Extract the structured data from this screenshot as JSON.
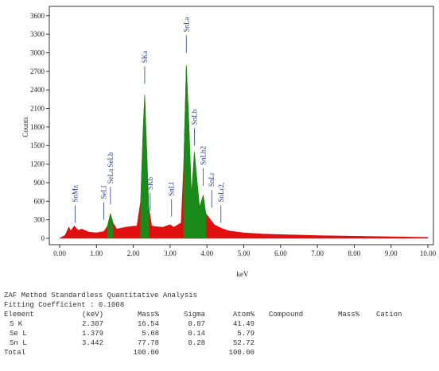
{
  "chart_data": {
    "type": "area",
    "x_label": "keV",
    "y_label": "Counts",
    "x": [
      0,
      0.15,
      0.25,
      0.3,
      0.4,
      0.5,
      0.6,
      0.8,
      1.0,
      1.2,
      1.3,
      1.38,
      1.45,
      1.55,
      1.7,
      1.9,
      2.1,
      2.2,
      2.27,
      2.31,
      2.36,
      2.42,
      2.5,
      2.6,
      2.8,
      3.0,
      3.1,
      3.3,
      3.37,
      3.44,
      3.5,
      3.58,
      3.66,
      3.72,
      3.8,
      3.9,
      3.97,
      4.1,
      4.2,
      4.4,
      4.6,
      5.0,
      5.5,
      6.0,
      7.0,
      8.0,
      9.0,
      10.0
    ],
    "series": [
      {
        "color": "#e01010",
        "values": [
          0,
          50,
          180,
          120,
          200,
          130,
          150,
          100,
          90,
          110,
          200,
          400,
          250,
          150,
          170,
          190,
          200,
          600,
          1800,
          2320,
          1500,
          500,
          200,
          190,
          180,
          220,
          180,
          250,
          1200,
          2800,
          2000,
          700,
          1400,
          1000,
          500,
          700,
          400,
          300,
          220,
          160,
          120,
          90,
          70,
          60,
          45,
          35,
          25,
          15
        ]
      },
      {
        "color": "#1a8a1a",
        "values": [
          null,
          null,
          null,
          null,
          null,
          null,
          null,
          null,
          null,
          null,
          200,
          400,
          250,
          null,
          null,
          null,
          null,
          600,
          1800,
          2320,
          1500,
          500,
          null,
          null,
          null,
          null,
          null,
          null,
          1200,
          2800,
          2000,
          700,
          1400,
          1000,
          500,
          700,
          400,
          null,
          null,
          null,
          null,
          null,
          null,
          null,
          null,
          null,
          null,
          null
        ]
      }
    ],
    "annotations": [
      {
        "label": "SnMz",
        "x": 0.42,
        "y": 250
      },
      {
        "label": "SeLl",
        "x": 1.2,
        "y": 300
      },
      {
        "label": "SeLa SeLb",
        "x": 1.38,
        "y": 550
      },
      {
        "label": "SKa",
        "x": 2.31,
        "y": 2500
      },
      {
        "label": "SKb",
        "x": 2.46,
        "y": 450
      },
      {
        "label": "SnLl",
        "x": 3.04,
        "y": 350
      },
      {
        "label": "SnLa",
        "x": 3.44,
        "y": 3000
      },
      {
        "label": "SnLb",
        "x": 3.66,
        "y": 1500
      },
      {
        "label": "SnLb2",
        "x": 3.9,
        "y": 850
      },
      {
        "label": "SnLr",
        "x": 4.13,
        "y": 500
      },
      {
        "label": "SnLr2,",
        "x": 4.38,
        "y": 250
      }
    ],
    "xlim": [
      -0.28,
      10.15
    ],
    "ylim": [
      0,
      3700
    ],
    "xticks": [
      {
        "value": 0,
        "label": "0.00"
      },
      {
        "value": 1,
        "label": "1.00"
      },
      {
        "value": 2,
        "label": "2.00"
      },
      {
        "value": 3,
        "label": "3.00"
      },
      {
        "value": 4,
        "label": "4.00"
      },
      {
        "value": 5,
        "label": "5.00"
      },
      {
        "value": 6,
        "label": "6.00"
      },
      {
        "value": 7,
        "label": "7.00"
      },
      {
        "value": 8,
        "label": "8.00"
      },
      {
        "value": 9,
        "label": "9.00"
      },
      {
        "value": 10,
        "label": "10.00"
      }
    ],
    "yticks": [
      0,
      300,
      600,
      900,
      1200,
      1500,
      1800,
      2100,
      2400,
      2700,
      3000,
      3300,
      3600
    ]
  },
  "table": {
    "title": "ZAF Method Standardless Quantitative Analysis",
    "fitting": "Fitting Coefficient : 0.1008",
    "header": [
      "Element",
      "(keV)",
      "Mass%",
      "Sigma",
      "Atom%",
      "Compound",
      "Mass%",
      "Cation"
    ],
    "rows": [
      [
        "S K",
        "2.307",
        "16.54",
        "0.07",
        "41.49"
      ],
      [
        "Se L",
        "1.379",
        "5.68",
        "0.14",
        "5.79"
      ],
      [
        "Sn L",
        "3.442",
        "77.78",
        "0.28",
        "52.72"
      ]
    ],
    "total": {
      "label": "Total",
      "mass": "100.00",
      "atom": "100.00"
    }
  }
}
